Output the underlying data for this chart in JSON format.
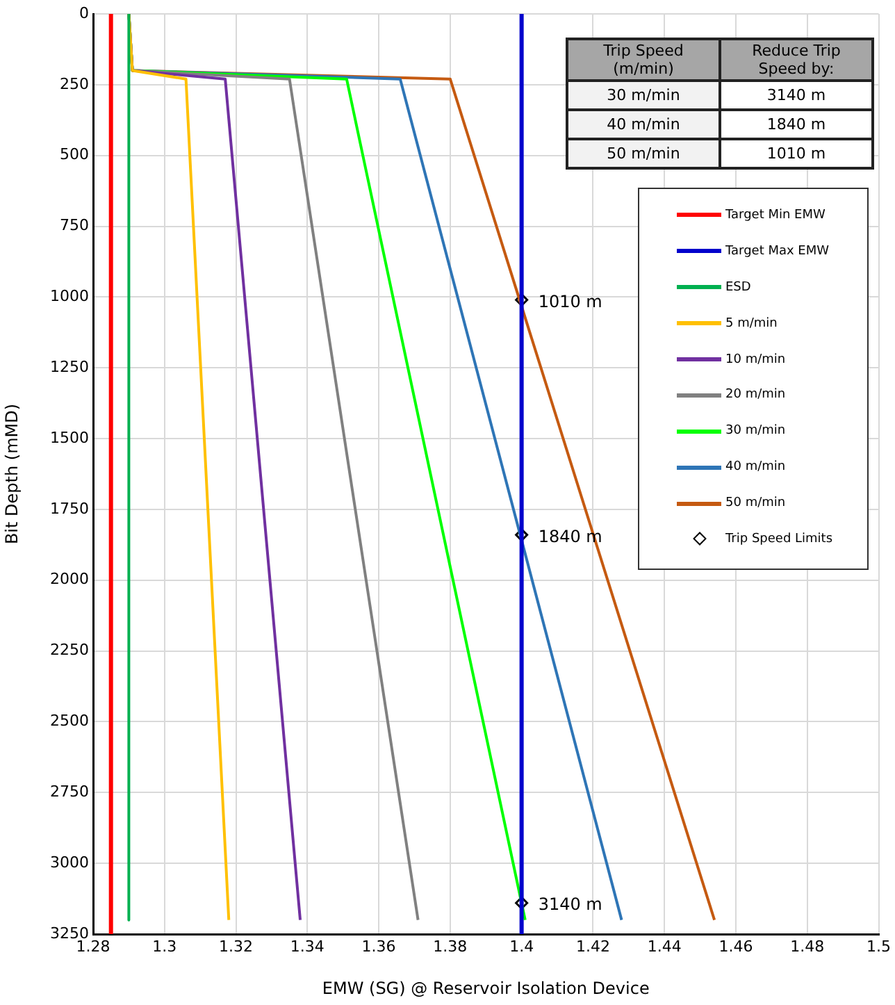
{
  "chart_data": {
    "type": "line",
    "xlabel": "EMW (SG) @ Reservoir Isolation Device",
    "ylabel": "Bit Depth (mMD)",
    "xlim": [
      1.28,
      1.5
    ],
    "xticks": [
      1.28,
      1.3,
      1.32,
      1.34,
      1.36,
      1.38,
      1.4,
      1.42,
      1.44,
      1.46,
      1.48,
      1.5
    ],
    "ylim": [
      3250,
      0
    ],
    "yticks": [
      0,
      250,
      500,
      750,
      1000,
      1250,
      1500,
      1750,
      2000,
      2250,
      2500,
      2750,
      3000,
      3250
    ],
    "grid": true,
    "legend": "right",
    "marker": "none",
    "line_style": "solid",
    "annotations": [
      "Trip Speed (m/min)",
      "Reduce Trip Speed by:",
      "30 m/min",
      "3140 m",
      "40 m/min",
      "1840 m",
      "50 m/min",
      "1010 m"
    ],
    "series": [
      {
        "name": "Target Min EMW",
        "color": "#ff0000",
        "x": [
          1.285,
          1.285
        ],
        "values": [
          0,
          3250
        ]
      },
      {
        "name": "Target Max EMW",
        "color": "#0000cc",
        "x": [
          1.4,
          1.4
        ],
        "values": [
          0,
          3250
        ]
      },
      {
        "name": "ESD",
        "color": "#00b050",
        "x": [
          1.29,
          1.29
        ],
        "values": [
          0,
          3200
        ]
      },
      {
        "name": "5 m/min",
        "color": "#ffc000",
        "x": [
          1.29,
          1.291,
          1.306,
          1.318
        ],
        "values": [
          0,
          200,
          230,
          3200
        ]
      },
      {
        "name": "10 m/min",
        "color": "#7030a0",
        "x": [
          1.29,
          1.291,
          1.317,
          1.338
        ],
        "values": [
          0,
          200,
          230,
          3200
        ]
      },
      {
        "name": "20 m/min",
        "color": "#808080",
        "x": [
          1.29,
          1.291,
          1.335,
          1.371
        ],
        "values": [
          0,
          200,
          230,
          3200
        ]
      },
      {
        "name": "30 m/min",
        "color": "#00ff00",
        "x": [
          1.29,
          1.291,
          1.351,
          1.401
        ],
        "values": [
          0,
          200,
          230,
          3200
        ]
      },
      {
        "name": "40 m/min",
        "color": "#2e75b6",
        "x": [
          1.29,
          1.291,
          1.366,
          1.428
        ],
        "values": [
          0,
          200,
          230,
          3200
        ]
      },
      {
        "name": "50 m/min",
        "color": "#c55a11",
        "x": [
          1.29,
          1.291,
          1.38,
          1.454
        ],
        "values": [
          0,
          200,
          230,
          3200
        ]
      },
      {
        "name": "Trip Speed Limits",
        "type": "scatter",
        "marker": "diamond",
        "color": "#000000",
        "x": [
          1.4,
          1.4,
          1.4
        ],
        "values": [
          1010,
          1840,
          3140
        ],
        "value_labels": [
          "1010 m",
          "1840 m",
          "3140 m"
        ]
      }
    ]
  }
}
